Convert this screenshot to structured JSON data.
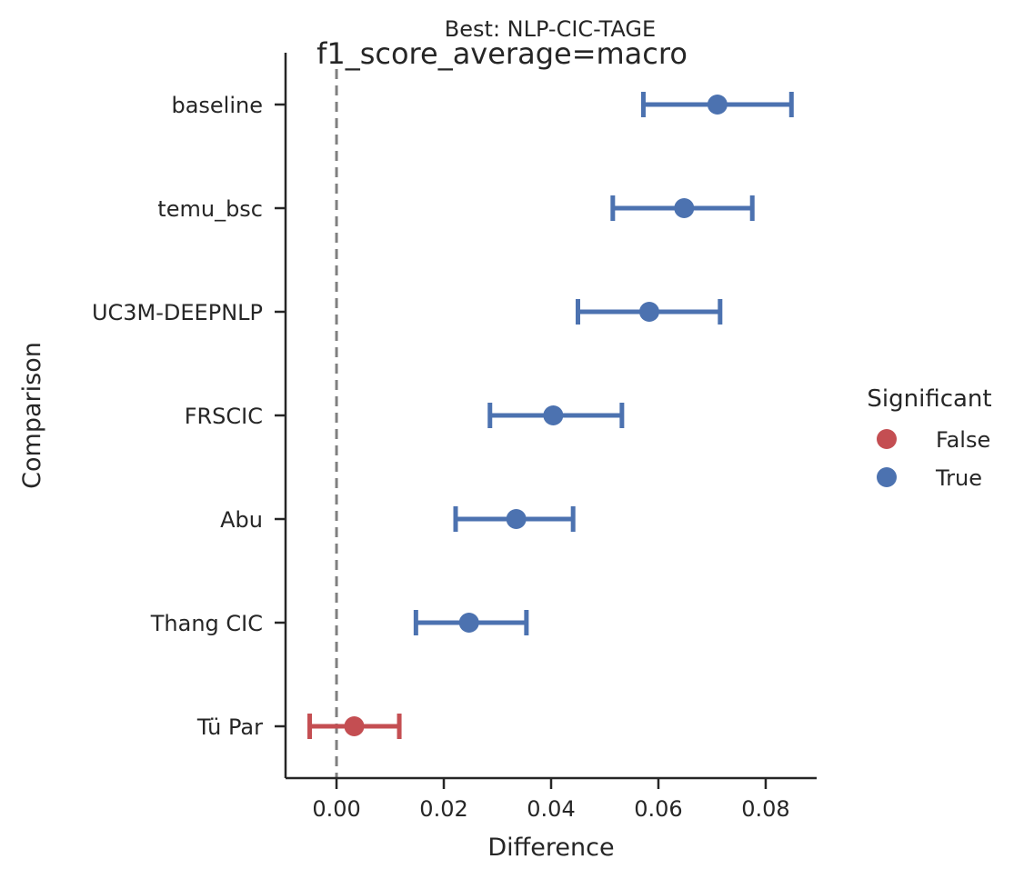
{
  "chart_data": {
    "type": "scatter",
    "title": "Best: NLP-CIC-TAGE",
    "suptitle": "f1_score_average=macro",
    "xlabel": "Difference",
    "ylabel": "Comparison",
    "xlim": [
      -0.0095,
      0.0895
    ],
    "xticks": [
      0.0,
      0.02,
      0.04,
      0.06,
      0.08
    ],
    "xtick_labels": [
      "0.00",
      "0.02",
      "0.04",
      "0.06",
      "0.08"
    ],
    "reference_line": {
      "x": 0.0,
      "style": "dashed",
      "color": "#808080"
    },
    "categories": [
      "baseline",
      "temu_bsc",
      "UC3M-DEEPNLP",
      "FRSCIC",
      "Abu",
      "Thang CIC",
      "Tü Par"
    ],
    "points": [
      {
        "label": "baseline",
        "value": 0.071,
        "low": 0.0572,
        "high": 0.0848,
        "significant": "True"
      },
      {
        "label": "temu_bsc",
        "value": 0.0648,
        "low": 0.0515,
        "high": 0.0775,
        "significant": "True"
      },
      {
        "label": "UC3M-DEEPNLP",
        "value": 0.0583,
        "low": 0.045,
        "high": 0.0715,
        "significant": "True"
      },
      {
        "label": "FRSCIC",
        "value": 0.0404,
        "low": 0.0286,
        "high": 0.0532,
        "significant": "True"
      },
      {
        "label": "Abu",
        "value": 0.0335,
        "low": 0.0222,
        "high": 0.0441,
        "significant": "True"
      },
      {
        "label": "Thang CIC",
        "value": 0.0247,
        "low": 0.0148,
        "high": 0.0354,
        "significant": "True"
      },
      {
        "label": "Tü Par",
        "value": 0.0033,
        "low": -0.005,
        "high": 0.0117,
        "significant": "False"
      }
    ],
    "legend": {
      "title": "Significant",
      "position": "right",
      "entries": [
        {
          "label": "False",
          "color": "#c44e52"
        },
        {
          "label": "True",
          "color": "#4c72b0"
        }
      ]
    },
    "grid": false
  }
}
